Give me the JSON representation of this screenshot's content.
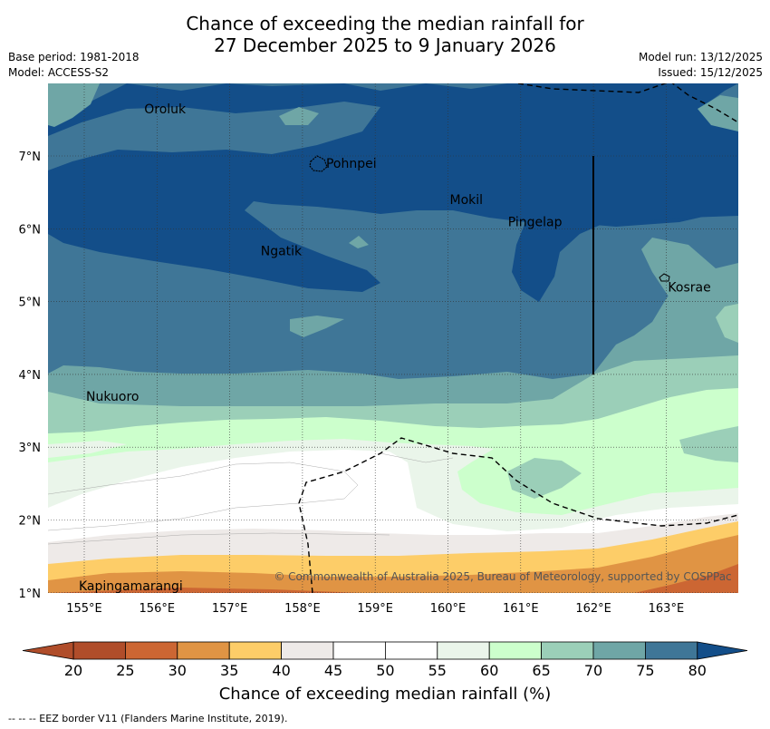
{
  "title": {
    "line1": "Chance of exceeding the median rainfall for",
    "line2": "27 December 2025 to 9 January 2026"
  },
  "meta_left": {
    "base_period": "Base period: 1981-2018",
    "model": "Model: ACCESS-S2"
  },
  "meta_right": {
    "model_run": "Model run: 13/12/2025",
    "issued": "Issued: 15/12/2025"
  },
  "map": {
    "lon_range": [
      154.5,
      164.0
    ],
    "lat_range": [
      1.0,
      8.0
    ],
    "lon_ticks": [
      "155°E",
      "156°E",
      "157°E",
      "158°E",
      "159°E",
      "160°E",
      "161°E",
      "162°E",
      "163°E"
    ],
    "lat_ticks": [
      "1°N",
      "2°N",
      "3°N",
      "4°N",
      "5°N",
      "6°N",
      "7°N"
    ],
    "places": [
      {
        "name": "Oroluk",
        "lon": 155.8,
        "lat": 7.65
      },
      {
        "name": "Pohnpei",
        "lon": 158.3,
        "lat": 6.9
      },
      {
        "name": "Mokil",
        "lon": 160.0,
        "lat": 6.4
      },
      {
        "name": "Pingelap",
        "lon": 160.8,
        "lat": 6.1
      },
      {
        "name": "Ngatik",
        "lon": 157.4,
        "lat": 5.7
      },
      {
        "name": "Kosrae",
        "lon": 163.0,
        "lat": 5.2
      },
      {
        "name": "Nukuoro",
        "lon": 155.0,
        "lat": 3.7
      },
      {
        "name": "Kapingamarangi",
        "lon": 154.9,
        "lat": 1.1
      }
    ],
    "copyright": "© Commonwealth of Australia 2025, Bureau of Meteorology, supported by COSPPac",
    "colors": {
      "c80": "#134e89",
      "c75": "#3f7697",
      "c70": "#6fa6a6",
      "c65": "#9bcfb8",
      "c60": "#ccffcc",
      "c55": "#eaf5ea",
      "c50": "#ffffff",
      "c45": "#eeeae8",
      "c40": "#fdcd68",
      "c35": "#e09444",
      "c30": "#cc6633",
      "c25": "#b04d2a"
    }
  },
  "colorbar": {
    "ticks": [
      "20",
      "25",
      "30",
      "35",
      "40",
      "45",
      "50",
      "55",
      "60",
      "65",
      "70",
      "75",
      "80"
    ],
    "colors": [
      "#b04d2a",
      "#cc6633",
      "#e09444",
      "#fdcd68",
      "#eeeae8",
      "#ffffff",
      "#ffffff",
      "#eaf5ea",
      "#ccffcc",
      "#9bcfb8",
      "#6fa6a6",
      "#3f7697"
    ],
    "low_color": "#b04d2a",
    "high_color": "#134e89",
    "label": "Chance of exceeding median rainfall (%)"
  },
  "footnote": "--  --  -- EEZ border V11 (Flanders Marine Institute, 2019)."
}
